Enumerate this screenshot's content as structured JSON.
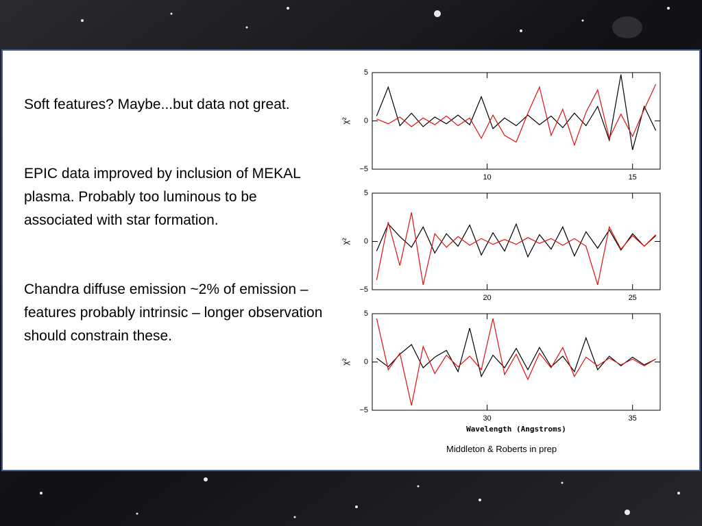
{
  "slide": {
    "bullets": [
      "Soft features? Maybe...but data not great.",
      "EPIC data improved by inclusion of MEKAL plasma. Probably too luminous to be associated with star formation.",
      "Chandra diffuse emission ~2% of emission – features probably intrinsic – longer observation should constrain these."
    ],
    "credit": "Middleton & Roberts in prep"
  },
  "chart_data": [
    {
      "type": "line",
      "ylabel": "χ²",
      "xlim": [
        6.05,
        15.95
      ],
      "xticks": [
        10,
        15
      ],
      "ylim": [
        -5,
        5
      ],
      "yticks": [
        {
          "value": -5,
          "label": "−5"
        },
        0,
        5
      ],
      "x": [
        6.2,
        6.6,
        7.0,
        7.4,
        7.8,
        8.2,
        8.6,
        9.0,
        9.4,
        9.8,
        10.2,
        10.6,
        11.0,
        11.4,
        11.8,
        12.2,
        12.6,
        13.0,
        13.4,
        13.8,
        14.2,
        14.6,
        15.0,
        15.4,
        15.8
      ],
      "series": [
        {
          "color": "#000000",
          "values": [
            0.5,
            3.5,
            -0.5,
            0.8,
            -0.6,
            0.4,
            -0.3,
            0.6,
            -0.4,
            2.5,
            -0.8,
            0.3,
            -0.5,
            0.6,
            -0.4,
            0.5,
            -0.7,
            0.8,
            -0.5,
            1.5,
            -2,
            4.8,
            -3,
            1.5,
            -1
          ]
        },
        {
          "color": "#e0100f",
          "values": [
            0.2,
            -0.3,
            0.4,
            -0.6,
            0.3,
            -0.4,
            0.5,
            -0.5,
            0.3,
            -1.8,
            0.6,
            -1.5,
            -2.2,
            0.8,
            3.5,
            -1.5,
            1.2,
            -2.5,
            0.9,
            3.2,
            -1.8,
            0.7,
            -1.6,
            1.2,
            3.8
          ]
        }
      ]
    },
    {
      "type": "line",
      "ylabel": "χ²",
      "xlim": [
        16.05,
        25.95
      ],
      "xticks": [
        20,
        25
      ],
      "ylim": [
        -5,
        5
      ],
      "yticks": [
        {
          "value": -5,
          "label": "−5"
        },
        0,
        5
      ],
      "x": [
        16.2,
        16.6,
        17.0,
        17.4,
        17.8,
        18.2,
        18.6,
        19.0,
        19.4,
        19.8,
        20.2,
        20.6,
        21.0,
        21.4,
        21.8,
        22.2,
        22.6,
        23.0,
        23.4,
        23.8,
        24.2,
        24.6,
        25.0,
        25.4,
        25.8
      ],
      "series": [
        {
          "color": "#000000",
          "values": [
            -1,
            1.8,
            0.5,
            -0.6,
            1.5,
            -1.2,
            0.8,
            -0.5,
            1.7,
            -1.4,
            0.9,
            -1,
            1.8,
            -1.6,
            0.7,
            -0.8,
            1.5,
            -1.5,
            1,
            -0.7,
            1.2,
            -0.9,
            0.8,
            -0.5,
            0.6
          ]
        },
        {
          "color": "#e0100f",
          "values": [
            -4,
            2,
            -2.5,
            3,
            -4.5,
            0.8,
            -0.6,
            0.5,
            -0.4,
            0.3,
            -0.3,
            0.2,
            -0.3,
            0.4,
            -0.2,
            0.3,
            -0.4,
            0.3,
            -0.5,
            -4.5,
            1.5,
            -0.8,
            0.6,
            -0.5,
            0.7
          ]
        }
      ]
    },
    {
      "type": "line",
      "ylabel": "χ²",
      "xlabel": "Wavelength (Angstroms)",
      "xlim": [
        26.05,
        35.95
      ],
      "xticks": [
        30,
        35
      ],
      "ylim": [
        -5,
        5
      ],
      "yticks": [
        {
          "value": -5,
          "label": "−5"
        },
        0,
        5
      ],
      "x": [
        26.2,
        26.6,
        27.0,
        27.4,
        27.8,
        28.2,
        28.6,
        29.0,
        29.4,
        29.8,
        30.2,
        30.6,
        31.0,
        31.4,
        31.8,
        32.2,
        32.6,
        33.0,
        33.4,
        33.8,
        34.2,
        34.6,
        35.0,
        35.4,
        35.8
      ],
      "series": [
        {
          "color": "#000000",
          "values": [
            0.4,
            -0.5,
            0.8,
            1.8,
            -0.6,
            0.5,
            1.2,
            -1,
            3.5,
            -1.5,
            0.7,
            -0.6,
            1.4,
            -0.8,
            1.5,
            -0.5,
            0.6,
            -1,
            2.5,
            -0.8,
            0.6,
            -0.4,
            0.5,
            -0.3,
            0.3
          ]
        },
        {
          "color": "#e0100f",
          "values": [
            4.5,
            -0.8,
            0.9,
            -4.5,
            1.6,
            -1.2,
            0.7,
            -0.5,
            0.6,
            -0.8,
            4.5,
            -1.3,
            0.8,
            -1.8,
            0.9,
            -0.6,
            1.5,
            -1.5,
            0.5,
            -0.4,
            0.4,
            -0.3,
            0.3,
            -0.4,
            0.3
          ]
        }
      ]
    }
  ]
}
